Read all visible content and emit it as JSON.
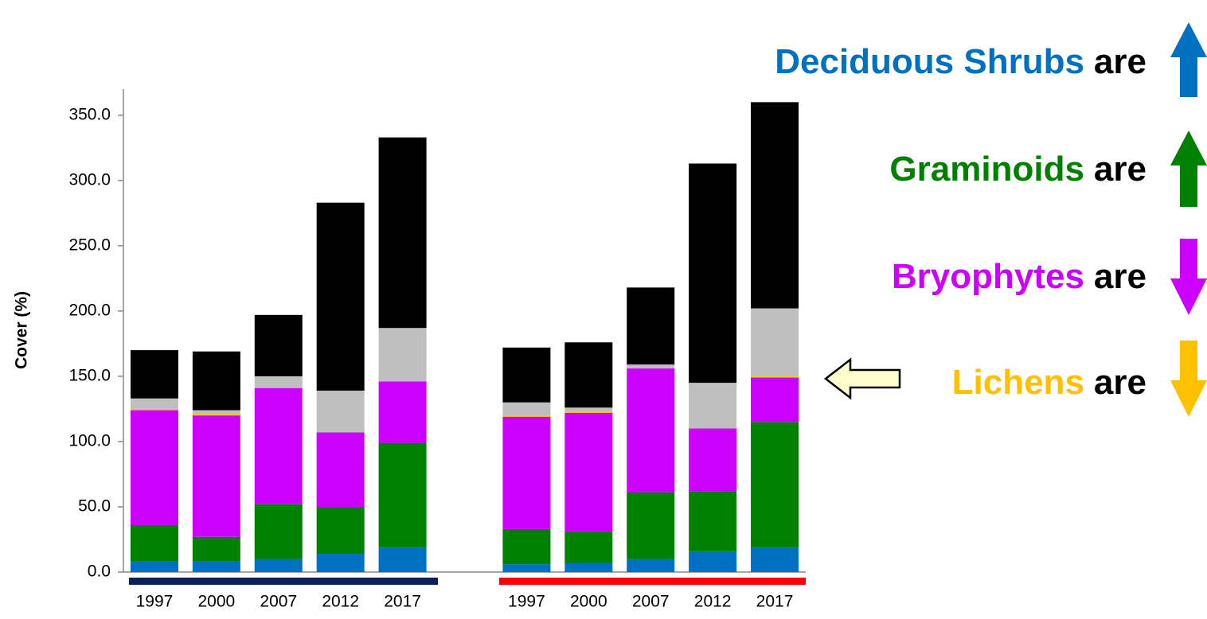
{
  "chart_data": {
    "type": "stacked_bar",
    "y_label": "Cover (%)",
    "categories": [
      "1997",
      "2000",
      "2007",
      "2012",
      "2017",
      null,
      "1997",
      "2000",
      "2007",
      "2012",
      "2017"
    ],
    "series": [
      {
        "name": "Deciduous Shrubs",
        "color": "#0070c0",
        "values": [
          8,
          8,
          10,
          14,
          19,
          null,
          6,
          7,
          10,
          16,
          19
        ]
      },
      {
        "name": "Graminoids",
        "color": "#008000",
        "values": [
          28,
          19,
          42,
          36,
          80,
          null,
          27,
          24,
          51,
          46,
          96
        ]
      },
      {
        "name": "Bryophytes",
        "color": "#cc00ff",
        "values": [
          88,
          93,
          89,
          57,
          47,
          null,
          86,
          91,
          95,
          48,
          34
        ]
      },
      {
        "name": "Lichens",
        "color": "#ffc000",
        "values": [
          1,
          1,
          0,
          0,
          0,
          null,
          1,
          1,
          0,
          0,
          1
        ]
      },
      {
        "color": "#bfbfbf",
        "values": [
          8,
          3,
          9,
          32,
          41,
          null,
          10,
          3,
          3,
          35,
          52
        ]
      },
      {
        "color": "#000000",
        "values": [
          37,
          45,
          47,
          144,
          146,
          null,
          42,
          50,
          59,
          168,
          158
        ]
      }
    ],
    "ylim": [
      0,
      370
    ],
    "yticks": [
      {
        "value": 0,
        "label": "0.0"
      },
      {
        "value": 50,
        "label": "50.0"
      },
      {
        "value": 100,
        "label": "100.0"
      },
      {
        "value": 150,
        "label": "150.0"
      },
      {
        "value": 200,
        "label": "200.0"
      },
      {
        "value": 250,
        "label": "250.0"
      },
      {
        "value": 300,
        "label": "300.0"
      },
      {
        "value": 350,
        "label": "350.0"
      }
    ],
    "annotations": [
      {
        "label": "Deciduous Shrubs",
        "text": "are",
        "color": "#0070c0"
      },
      {
        "label": "Graminoids",
        "text": "are",
        "color": "#008000"
      },
      {
        "label": "Bryophytes",
        "text": "are",
        "color": "#cc00ff"
      },
      {
        "label": "Lichens",
        "text": "are",
        "color": "#ffc000"
      }
    ]
  }
}
